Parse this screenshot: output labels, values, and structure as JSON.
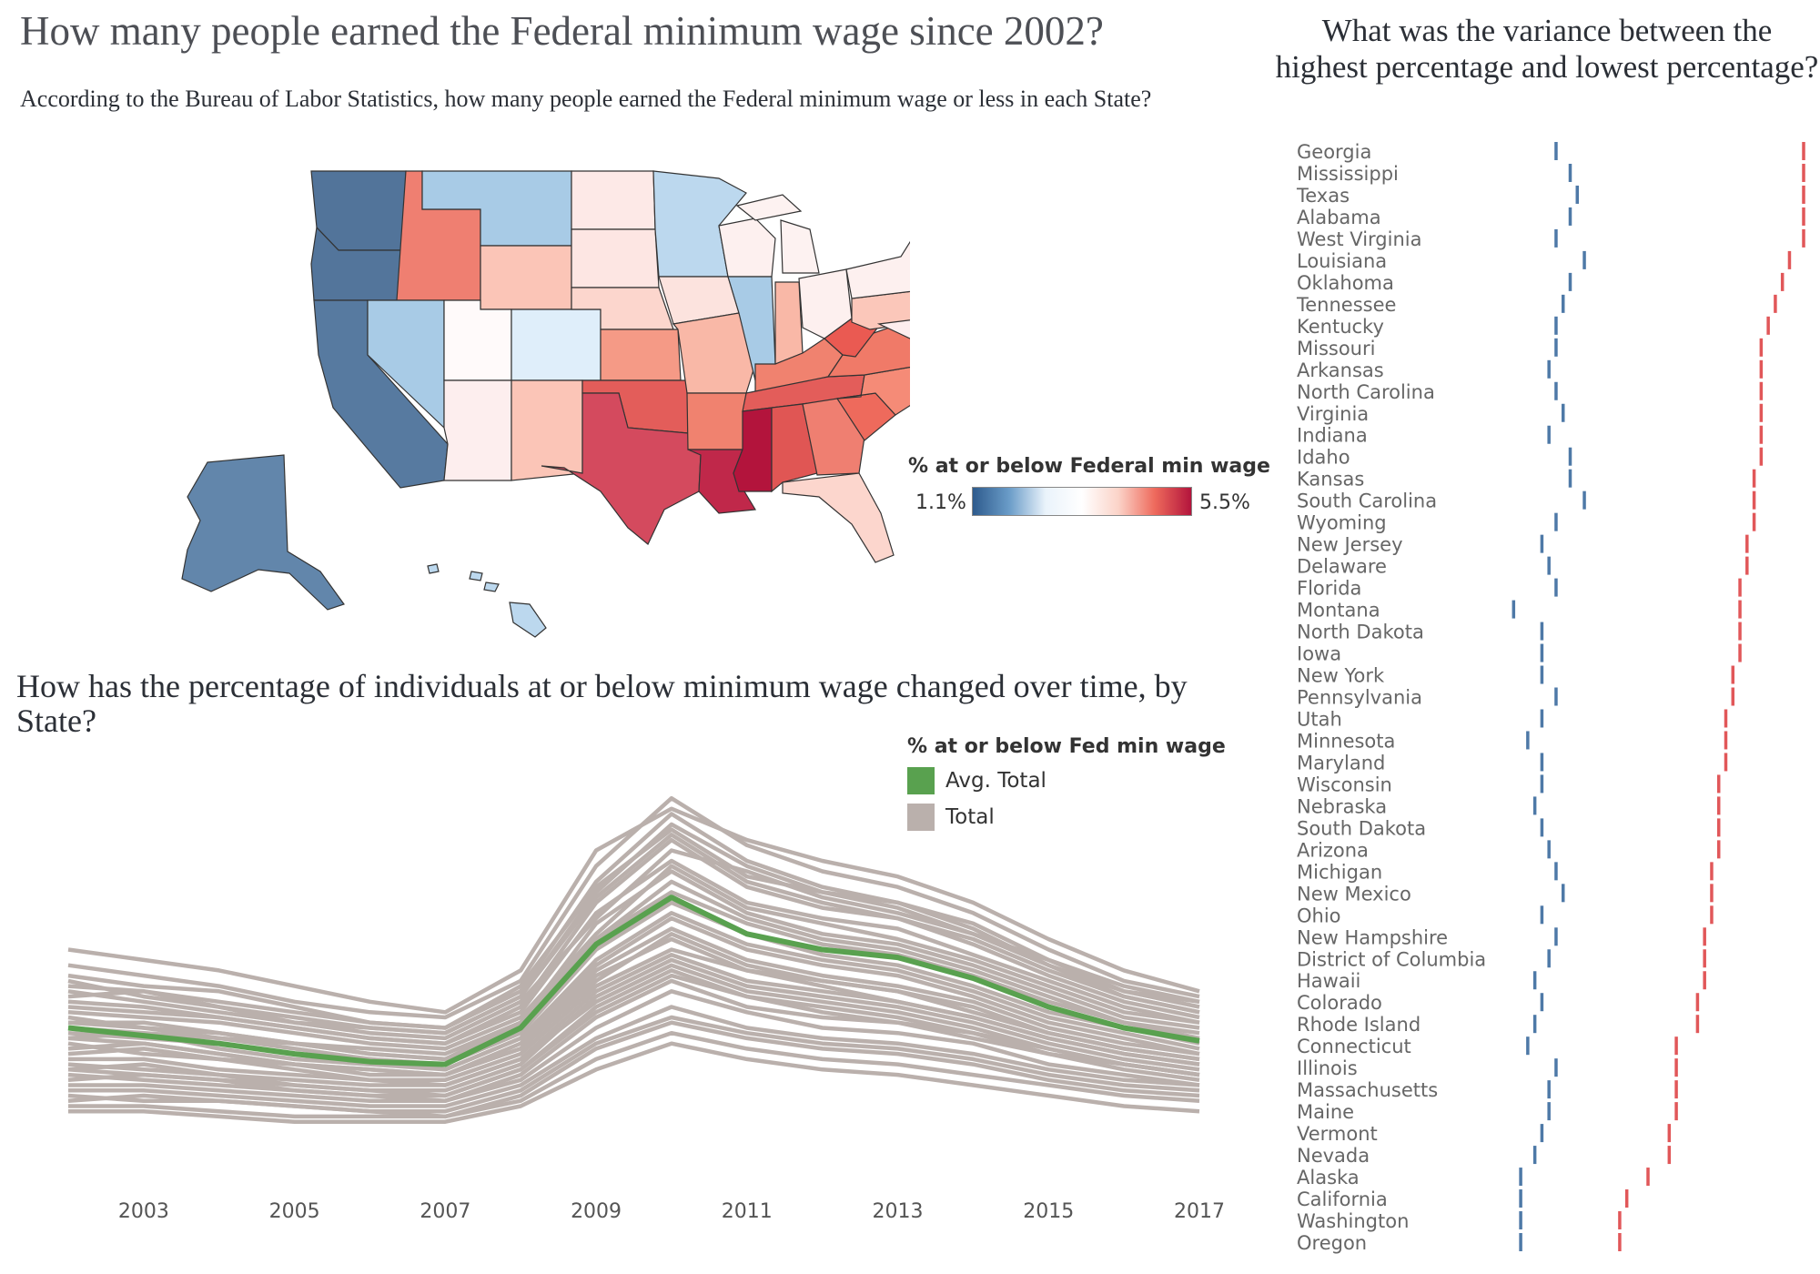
{
  "main_title": "How many people earned the Federal minimum wage since 2002?",
  "map": {
    "subtitle": "According to the Bureau of Labor Statistics, how many people earned the Federal minimum wage or less in each State?",
    "legend_title": "% at or below Federal min wage",
    "legend_min": "1.1%",
    "legend_max": "5.5%",
    "color_low": "#2e5b8d",
    "color_mid": "#ffffff",
    "color_high": "#b3143c"
  },
  "line_chart": {
    "title": "How has the percentage of individuals at or below minimum wage changed over time, by State?",
    "legend_title": "% at or below Fed min wage",
    "legend_items": [
      {
        "label": "Avg. Total",
        "color": "#59a14f"
      },
      {
        "label": "Total",
        "color": "#bab0ac"
      }
    ]
  },
  "range_chart": {
    "title": "What was the variance between the highest percentage and lowest percentage?"
  },
  "chart_data": [
    {
      "type": "line",
      "x": [
        2002,
        2003,
        2004,
        2005,
        2006,
        2007,
        2008,
        2009,
        2010,
        2011,
        2012,
        2013,
        2014,
        2015,
        2016,
        2017
      ],
      "x_tick_labels": [
        "2003",
        "2005",
        "2007",
        "2009",
        "2011",
        "2013",
        "2015",
        "2017"
      ],
      "ylim": [
        0,
        7.5
      ],
      "avg_series": {
        "name": "Avg. Total",
        "color": "#59a14f",
        "values": [
          2.8,
          2.65,
          2.5,
          2.3,
          2.15,
          2.1,
          2.8,
          4.4,
          5.3,
          4.6,
          4.3,
          4.15,
          3.75,
          3.2,
          2.8,
          2.55
        ]
      },
      "series_color": "#bab0ac",
      "series": [
        {
          "values": [
            2.6,
            2.5,
            2.3,
            2.1,
            1.9,
            1.9,
            2.4,
            3.8,
            4.5,
            3.9,
            3.7,
            3.5,
            3.1,
            2.7,
            2.4,
            2.2
          ]
        },
        {
          "values": [
            3.3,
            3.2,
            3.0,
            2.8,
            2.6,
            2.5,
            3.2,
            5.2,
            6.4,
            5.5,
            5.1,
            4.9,
            4.4,
            3.8,
            3.3,
            3.0
          ]
        },
        {
          "values": [
            2.1,
            2.0,
            1.9,
            1.7,
            1.6,
            1.6,
            2.1,
            3.4,
            4.1,
            3.6,
            3.4,
            3.2,
            2.9,
            2.5,
            2.2,
            2.0
          ]
        },
        {
          "values": [
            3.6,
            3.5,
            3.3,
            3.1,
            2.9,
            2.8,
            3.5,
            5.6,
            6.9,
            6.0,
            5.5,
            5.2,
            4.7,
            4.0,
            3.5,
            3.2
          ]
        },
        {
          "values": [
            1.6,
            1.6,
            1.5,
            1.4,
            1.3,
            1.3,
            1.7,
            2.6,
            3.2,
            2.8,
            2.6,
            2.5,
            2.3,
            2.0,
            1.8,
            1.7
          ]
        },
        {
          "values": [
            2.9,
            2.9,
            2.7,
            2.5,
            2.3,
            2.2,
            2.8,
            4.5,
            5.6,
            4.9,
            4.5,
            4.3,
            3.9,
            3.4,
            2.9,
            2.7
          ]
        },
        {
          "values": [
            1.2,
            1.2,
            1.1,
            1.0,
            1.0,
            1.0,
            1.3,
            2.0,
            2.5,
            2.2,
            2.0,
            1.9,
            1.7,
            1.5,
            1.3,
            1.2
          ]
        },
        {
          "values": [
            4.0,
            3.8,
            3.6,
            3.3,
            3.1,
            3.0,
            3.7,
            5.9,
            7.2,
            6.3,
            5.8,
            5.5,
            5.0,
            4.3,
            3.7,
            3.4
          ]
        },
        {
          "values": [
            2.3,
            2.4,
            2.2,
            2.0,
            1.8,
            1.8,
            2.3,
            3.6,
            4.3,
            3.9,
            3.6,
            3.3,
            3.0,
            2.6,
            2.3,
            2.1
          ]
        },
        {
          "values": [
            3.0,
            2.8,
            2.6,
            2.5,
            2.4,
            2.3,
            2.9,
            4.8,
            5.8,
            5.0,
            4.6,
            4.4,
            4.0,
            3.5,
            3.0,
            2.8
          ]
        },
        {
          "values": [
            1.9,
            1.8,
            1.7,
            1.6,
            1.5,
            1.4,
            1.9,
            3.0,
            3.7,
            3.2,
            3.0,
            2.9,
            2.6,
            2.3,
            2.0,
            1.8
          ]
        },
        {
          "values": [
            3.4,
            3.5,
            3.2,
            2.9,
            2.7,
            2.6,
            3.3,
            4.9,
            6.2,
            5.8,
            5.3,
            5.0,
            4.6,
            4.0,
            3.4,
            3.1
          ]
        },
        {
          "values": [
            2.7,
            2.6,
            2.5,
            2.3,
            2.2,
            2.0,
            2.6,
            4.1,
            5.0,
            4.4,
            4.1,
            3.9,
            3.5,
            3.0,
            2.7,
            2.4
          ]
        },
        {
          "values": [
            1.4,
            1.5,
            1.4,
            1.3,
            1.2,
            1.1,
            1.5,
            2.4,
            2.9,
            2.6,
            2.4,
            2.3,
            2.1,
            1.8,
            1.6,
            1.5
          ]
        },
        {
          "values": [
            3.8,
            3.6,
            3.5,
            3.2,
            2.9,
            2.8,
            3.6,
            5.5,
            6.6,
            5.7,
            5.4,
            5.1,
            4.6,
            4.1,
            3.6,
            3.3
          ]
        },
        {
          "values": [
            2.5,
            2.3,
            2.2,
            2.1,
            2.0,
            1.9,
            2.5,
            3.9,
            4.7,
            4.1,
            3.8,
            3.6,
            3.3,
            2.8,
            2.5,
            2.3
          ]
        },
        {
          "values": [
            1.8,
            1.9,
            1.8,
            1.6,
            1.5,
            1.5,
            2.0,
            3.1,
            3.8,
            3.4,
            3.1,
            2.9,
            2.7,
            2.3,
            2.1,
            1.9
          ]
        },
        {
          "values": [
            3.1,
            3.0,
            2.9,
            2.7,
            2.5,
            2.4,
            3.0,
            4.6,
            5.9,
            5.1,
            4.8,
            4.5,
            4.1,
            3.6,
            3.1,
            2.9
          ]
        },
        {
          "values": [
            2.0,
            2.1,
            1.9,
            1.8,
            1.7,
            1.7,
            2.2,
            3.3,
            4.0,
            3.5,
            3.3,
            3.1,
            2.8,
            2.4,
            2.1,
            1.9
          ]
        },
        {
          "values": [
            4.3,
            4.1,
            3.9,
            3.6,
            3.3,
            3.1,
            3.9,
            6.2,
            7.0,
            6.4,
            6.0,
            5.7,
            5.2,
            4.5,
            3.9,
            3.5
          ]
        },
        {
          "values": [
            2.8,
            2.7,
            2.6,
            2.4,
            2.2,
            2.1,
            2.7,
            4.3,
            5.2,
            4.6,
            4.2,
            4.0,
            3.6,
            3.1,
            2.8,
            2.5
          ]
        },
        {
          "values": [
            1.5,
            1.4,
            1.4,
            1.3,
            1.2,
            1.2,
            1.6,
            2.5,
            3.0,
            2.7,
            2.5,
            2.4,
            2.2,
            1.9,
            1.7,
            1.6
          ]
        },
        {
          "values": [
            3.5,
            3.3,
            3.1,
            2.9,
            2.8,
            2.7,
            3.4,
            5.3,
            6.5,
            5.6,
            5.2,
            4.9,
            4.5,
            3.9,
            3.4,
            3.1
          ]
        },
        {
          "values": [
            2.2,
            2.2,
            2.0,
            1.9,
            1.8,
            1.7,
            2.2,
            3.5,
            4.2,
            3.7,
            3.5,
            3.3,
            3.0,
            2.6,
            2.3,
            2.1
          ]
        },
        {
          "values": [
            1.7,
            1.7,
            1.6,
            1.5,
            1.4,
            1.4,
            1.8,
            2.8,
            3.5,
            3.1,
            2.8,
            2.7,
            2.5,
            2.1,
            1.9,
            1.7
          ]
        },
        {
          "values": [
            3.2,
            3.1,
            3.0,
            2.8,
            2.6,
            2.5,
            3.1,
            5.0,
            6.0,
            5.2,
            4.9,
            4.7,
            4.2,
            3.7,
            3.2,
            2.9
          ]
        },
        {
          "values": [
            2.4,
            2.5,
            2.3,
            2.1,
            2.0,
            1.9,
            2.4,
            3.7,
            4.6,
            4.0,
            3.7,
            3.5,
            3.2,
            2.7,
            2.4,
            2.2
          ]
        },
        {
          "values": [
            1.3,
            1.3,
            1.2,
            1.1,
            1.1,
            1.1,
            1.4,
            2.2,
            2.7,
            2.4,
            2.2,
            2.1,
            1.9,
            1.7,
            1.5,
            1.4
          ]
        },
        {
          "values": [
            2.6,
            2.7,
            2.4,
            2.2,
            2.1,
            2.0,
            2.6,
            4.0,
            4.9,
            4.3,
            4.0,
            3.8,
            3.4,
            2.9,
            2.6,
            2.3
          ]
        },
        {
          "values": [
            3.7,
            3.4,
            3.2,
            3.0,
            2.8,
            2.7,
            3.4,
            5.4,
            6.7,
            5.9,
            5.4,
            5.2,
            4.8,
            4.1,
            3.5,
            3.3
          ]
        },
        {
          "values": [
            2.9,
            2.8,
            2.7,
            2.5,
            2.3,
            2.2,
            2.9,
            4.5,
            5.4,
            4.8,
            4.4,
            4.2,
            3.8,
            3.3,
            2.9,
            2.6
          ]
        },
        {
          "values": [
            2.0,
            1.9,
            1.8,
            1.7,
            1.6,
            1.5,
            2.0,
            3.2,
            3.9,
            3.4,
            3.2,
            3.0,
            2.7,
            2.4,
            2.1,
            1.9
          ]
        }
      ]
    },
    {
      "type": "range",
      "title": "What was the variance between the highest percentage and lowest percentage?",
      "categories": [
        "Georgia",
        "Mississippi",
        "Texas",
        "Alabama",
        "West Virginia",
        "Louisiana",
        "Oklahoma",
        "Tennessee",
        "Kentucky",
        "Missouri",
        "Arkansas",
        "North Carolina",
        "Virginia",
        "Indiana",
        "Idaho",
        "Kansas",
        "South Carolina",
        "Wyoming",
        "New Jersey",
        "Delaware",
        "Florida",
        "Montana",
        "North Dakota",
        "Iowa",
        "New York",
        "Pennsylvania",
        "Utah",
        "Minnesota",
        "Maryland",
        "Wisconsin",
        "Nebraska",
        "South Dakota",
        "Arizona",
        "Michigan",
        "New Mexico",
        "Ohio",
        "New Hampshire",
        "District of Columbia",
        "Hawaii",
        "Colorado",
        "Rhode Island",
        "Connecticut",
        "Illinois",
        "Massachusetts",
        "Maine",
        "Vermont",
        "Nevada",
        "Alaska",
        "California",
        "Washington",
        "Oregon"
      ],
      "min_values": [
        2.0,
        2.2,
        2.3,
        2.2,
        2.0,
        2.4,
        2.2,
        2.1,
        2.0,
        2.0,
        1.9,
        2.0,
        2.1,
        1.9,
        2.2,
        2.2,
        2.4,
        2.0,
        1.8,
        1.9,
        2.0,
        1.4,
        1.8,
        1.8,
        1.8,
        2.0,
        1.8,
        1.6,
        1.8,
        1.8,
        1.7,
        1.8,
        1.9,
        2.0,
        2.1,
        1.8,
        2.0,
        1.9,
        1.7,
        1.8,
        1.7,
        1.6,
        2.0,
        1.9,
        1.9,
        1.8,
        1.7,
        1.5,
        1.5,
        1.5,
        1.5
      ],
      "max_values": [
        5.5,
        5.5,
        5.5,
        5.5,
        5.5,
        5.3,
        5.2,
        5.1,
        5.0,
        4.9,
        4.9,
        4.9,
        4.9,
        4.9,
        4.9,
        4.8,
        4.8,
        4.8,
        4.7,
        4.7,
        4.6,
        4.6,
        4.6,
        4.6,
        4.5,
        4.5,
        4.4,
        4.4,
        4.4,
        4.3,
        4.3,
        4.3,
        4.3,
        4.2,
        4.2,
        4.2,
        4.1,
        4.1,
        4.1,
        4.0,
        4.0,
        3.7,
        3.7,
        3.7,
        3.7,
        3.6,
        3.6,
        3.3,
        3.0,
        2.9,
        2.9
      ],
      "min_color": "#4e79a7",
      "max_color": "#e15759",
      "xlim": [
        0,
        6.5
      ]
    }
  ]
}
